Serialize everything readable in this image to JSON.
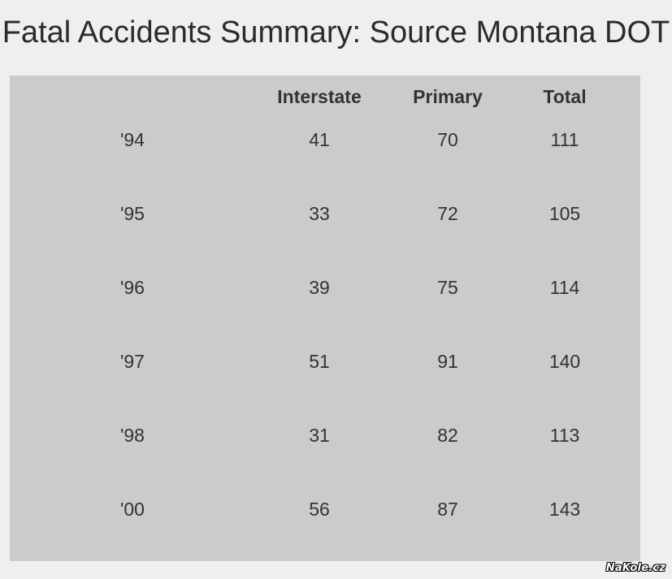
{
  "chart_data": {
    "type": "table",
    "title": "Fatal Accidents Summary: Source Montana DOT",
    "columns": [
      "",
      "Interstate",
      "Primary",
      "Total"
    ],
    "rows": [
      [
        "'94",
        "41",
        "70",
        "111"
      ],
      [
        "'95",
        "33",
        "72",
        "105"
      ],
      [
        "'96",
        "39",
        "75",
        "114"
      ],
      [
        "'97",
        "51",
        "91",
        "140"
      ],
      [
        "'98",
        "31",
        "82",
        "113"
      ],
      [
        "'00",
        "56",
        "87",
        "143"
      ]
    ]
  },
  "watermark": "NaKole.cz",
  "colors": {
    "page_background": "#efefef",
    "table_background": "#cbcbcb",
    "text": "#333333"
  }
}
